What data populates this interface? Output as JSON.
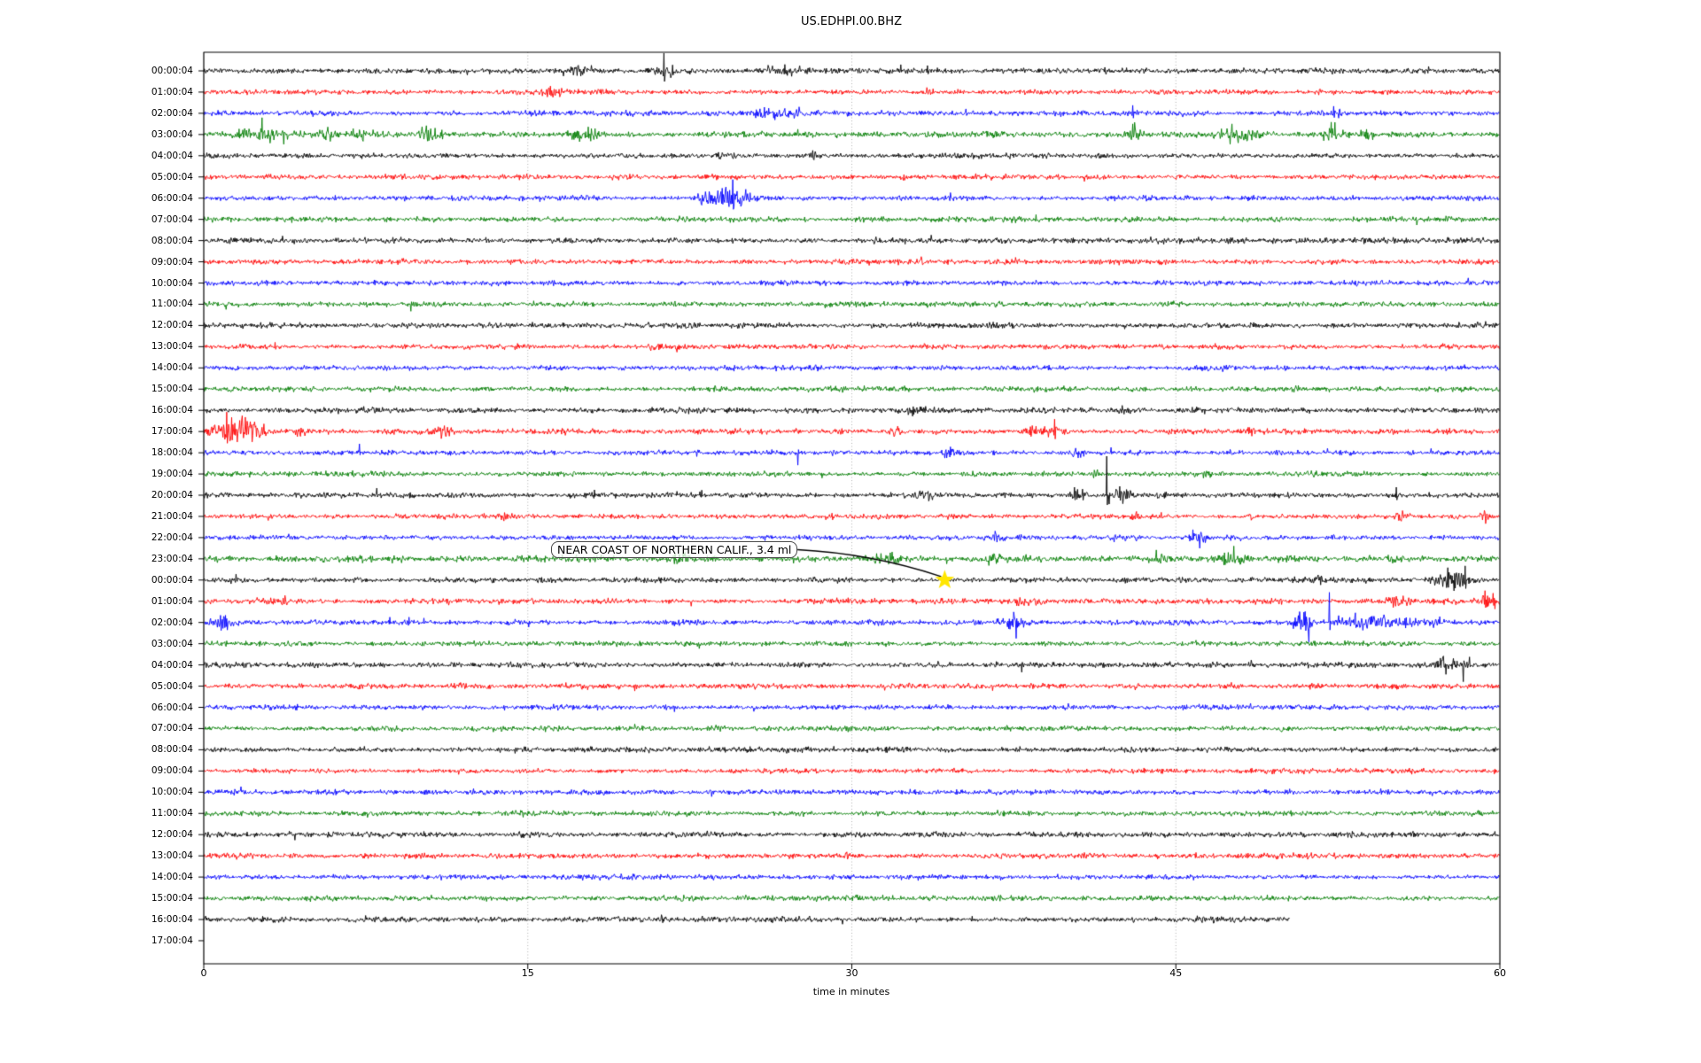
{
  "title": "US.EDHPI.00.BHZ",
  "axes": {
    "xlabel": "time in minutes",
    "x_ticks": [
      "0",
      "15",
      "30",
      "45",
      "60"
    ],
    "x_tick_minutes": [
      0,
      15,
      30,
      45,
      60
    ],
    "x_range_minutes": [
      0,
      60
    ],
    "grid_minutes": [
      15,
      30,
      45
    ],
    "grid_color": "#9a9a9a",
    "frame_color": "#000000"
  },
  "annotation": {
    "text": "NEAR COAST OF NORTHERN CALIF., 3.4 ml",
    "target_row": 24,
    "target_minute": 34.3,
    "marker": "star",
    "marker_color": "#ffe600"
  },
  "chart_data": {
    "type": "line",
    "subtype": "helicorder-dayplot",
    "title": "US.EDHPI.00.BHZ",
    "minutes_per_line": 60,
    "legend": "none",
    "grid": "vertical-dotted",
    "trace_colors": {
      "k": "#000000",
      "r": "#ff0000",
      "b": "#0000ff",
      "g": "#007d00"
    },
    "rows": [
      {
        "t": "00:00:04",
        "c": "k",
        "n": 3.4,
        "ev": [
          {
            "y": "b",
            "m": 17.2,
            "w": 1.2,
            "a": 5
          },
          {
            "y": "s",
            "m": 21.3,
            "a": 20,
            "d": "x"
          },
          {
            "y": "b",
            "m": 21.5,
            "w": 0.6,
            "a": 6
          },
          {
            "y": "b",
            "m": 27.0,
            "w": 1.5,
            "a": 4
          },
          {
            "y": "s",
            "m": 33.5,
            "a": 6,
            "d": "x"
          }
        ]
      },
      {
        "t": "01:00:04",
        "c": "r",
        "n": 3.0,
        "ev": [
          {
            "y": "b",
            "m": 16.1,
            "w": 0.9,
            "a": 6
          }
        ]
      },
      {
        "t": "02:00:04",
        "c": "b",
        "n": 3.0,
        "ev": [
          {
            "y": "b",
            "m": 26.3,
            "w": 2.0,
            "a": 7
          },
          {
            "y": "s",
            "m": 43.0,
            "a": 9,
            "d": "x"
          },
          {
            "y": "s",
            "m": 52.3,
            "a": 8,
            "d": "x"
          },
          {
            "y": "b",
            "m": 52.4,
            "w": 0.6,
            "a": 4
          }
        ]
      },
      {
        "t": "03:00:04",
        "c": "g",
        "n": 3.4,
        "ev": [
          {
            "y": "b",
            "m": 2.6,
            "w": 2.2,
            "a": 8
          },
          {
            "y": "s",
            "m": 2.7,
            "a": 19,
            "d": "u"
          },
          {
            "y": "s",
            "m": 3.7,
            "a": 11,
            "d": "d"
          },
          {
            "y": "b",
            "m": 5.8,
            "w": 0.8,
            "a": 5
          },
          {
            "y": "b",
            "m": 7.2,
            "w": 0.7,
            "a": 6
          },
          {
            "y": "b",
            "m": 10.5,
            "w": 1.1,
            "a": 7
          },
          {
            "y": "s",
            "m": 10.3,
            "a": 10,
            "d": "u"
          },
          {
            "y": "b",
            "m": 17.7,
            "w": 1.3,
            "a": 6
          },
          {
            "y": "s",
            "m": 27.5,
            "a": 6,
            "d": "u"
          },
          {
            "y": "b",
            "m": 36.6,
            "w": 0.5,
            "a": 5
          },
          {
            "y": "s",
            "m": 43.0,
            "a": 12,
            "d": "u"
          },
          {
            "y": "b",
            "m": 43.1,
            "w": 0.8,
            "a": 5
          },
          {
            "y": "b",
            "m": 47.9,
            "w": 1.8,
            "a": 8
          },
          {
            "y": "s",
            "m": 47.6,
            "a": 12,
            "d": "u"
          },
          {
            "y": "b",
            "m": 52.3,
            "w": 0.9,
            "a": 10
          },
          {
            "y": "s",
            "m": 52.2,
            "a": 14,
            "d": "u"
          },
          {
            "y": "b",
            "m": 53.8,
            "w": 0.7,
            "a": 6
          }
        ]
      },
      {
        "t": "04:00:04",
        "c": "k",
        "n": 3.2,
        "ev": [
          {
            "y": "s",
            "m": 28.2,
            "a": 6,
            "d": "x"
          },
          {
            "y": "b",
            "m": 28.2,
            "w": 0.4,
            "a": 4
          }
        ]
      },
      {
        "t": "05:00:04",
        "c": "r",
        "n": 3.0,
        "ev": []
      },
      {
        "t": "06:00:04",
        "c": "b",
        "n": 3.0,
        "ev": [
          {
            "y": "b",
            "m": 23.2,
            "w": 0.7,
            "a": 6
          },
          {
            "y": "b",
            "m": 24.4,
            "w": 1.6,
            "a": 12
          },
          {
            "y": "s",
            "m": 24.5,
            "a": 21,
            "d": "x"
          },
          {
            "y": "s",
            "m": 25.1,
            "a": 10,
            "d": "u"
          }
        ]
      },
      {
        "t": "07:00:04",
        "c": "g",
        "n": 3.0,
        "ev": []
      },
      {
        "t": "08:00:04",
        "c": "k",
        "n": 3.2,
        "ev": []
      },
      {
        "t": "09:00:04",
        "c": "r",
        "n": 3.0,
        "ev": []
      },
      {
        "t": "10:00:04",
        "c": "b",
        "n": 2.9,
        "ev": []
      },
      {
        "t": "11:00:04",
        "c": "g",
        "n": 3.1,
        "ev": []
      },
      {
        "t": "12:00:04",
        "c": "k",
        "n": 3.2,
        "ev": []
      },
      {
        "t": "13:00:04",
        "c": "r",
        "n": 3.0,
        "ev": [
          {
            "y": "s",
            "m": 3.3,
            "a": 5,
            "d": "x"
          }
        ]
      },
      {
        "t": "14:00:04",
        "c": "b",
        "n": 2.9,
        "ev": []
      },
      {
        "t": "15:00:04",
        "c": "g",
        "n": 3.1,
        "ev": []
      },
      {
        "t": "16:00:04",
        "c": "k",
        "n": 3.3,
        "ev": [
          {
            "y": "b",
            "m": 32.9,
            "w": 0.6,
            "a": 4
          },
          {
            "y": "b",
            "m": 42.5,
            "w": 0.5,
            "a": 4
          }
        ]
      },
      {
        "t": "17:00:04",
        "c": "r",
        "n": 3.0,
        "ev": [
          {
            "y": "b",
            "m": 1.6,
            "w": 2.4,
            "a": 14
          },
          {
            "y": "s",
            "m": 1.05,
            "a": 22,
            "d": "x"
          },
          {
            "y": "s",
            "m": 1.3,
            "a": 16,
            "d": "x"
          },
          {
            "y": "b",
            "m": 4.5,
            "w": 0.8,
            "a": 5
          },
          {
            "y": "b",
            "m": 11.1,
            "w": 0.8,
            "a": 6
          },
          {
            "y": "b",
            "m": 32.0,
            "w": 0.5,
            "a": 4
          },
          {
            "y": "b",
            "m": 38.6,
            "w": 0.9,
            "a": 7
          },
          {
            "y": "s",
            "m": 39.4,
            "a": 14,
            "d": "x"
          },
          {
            "y": "b",
            "m": 39.5,
            "w": 0.7,
            "a": 6
          },
          {
            "y": "b",
            "m": 48.4,
            "w": 0.6,
            "a": 5
          }
        ]
      },
      {
        "t": "18:00:04",
        "c": "b",
        "n": 2.9,
        "ev": [
          {
            "y": "s",
            "m": 7.2,
            "a": 10,
            "d": "u"
          },
          {
            "y": "s",
            "m": 27.5,
            "a": 14,
            "d": "d"
          },
          {
            "y": "b",
            "m": 34.5,
            "w": 0.8,
            "a": 4
          },
          {
            "y": "b",
            "m": 40.5,
            "w": 0.8,
            "a": 4
          },
          {
            "y": "s",
            "m": 42.0,
            "a": 6,
            "d": "u"
          },
          {
            "y": "b",
            "m": 56.0,
            "w": 0.5,
            "a": 4
          }
        ]
      },
      {
        "t": "19:00:04",
        "c": "g",
        "n": 3.0,
        "ev": [
          {
            "y": "b",
            "m": 41.3,
            "w": 0.4,
            "a": 4
          },
          {
            "y": "b",
            "m": 46.4,
            "w": 0.4,
            "a": 4
          }
        ]
      },
      {
        "t": "20:00:04",
        "c": "k",
        "n": 3.1,
        "ev": [
          {
            "y": "s",
            "m": 8.0,
            "a": 8,
            "d": "u"
          },
          {
            "y": "s",
            "m": 18.1,
            "a": 6,
            "d": "u"
          },
          {
            "y": "b",
            "m": 33.5,
            "w": 1.0,
            "a": 5
          },
          {
            "y": "b",
            "m": 40.4,
            "w": 0.8,
            "a": 7
          },
          {
            "y": "s",
            "m": 40.3,
            "a": 9,
            "d": "x"
          },
          {
            "y": "s",
            "m": 41.8,
            "a": 44,
            "d": "u"
          },
          {
            "y": "s",
            "m": 41.9,
            "a": 10,
            "d": "d"
          },
          {
            "y": "b",
            "m": 42.5,
            "w": 0.8,
            "a": 8
          },
          {
            "y": "s",
            "m": 42.4,
            "a": 10,
            "d": "x"
          },
          {
            "y": "b",
            "m": 44.3,
            "w": 0.4,
            "a": 4
          },
          {
            "y": "s",
            "m": 55.2,
            "a": 9,
            "d": "x"
          }
        ]
      },
      {
        "t": "21:00:04",
        "c": "r",
        "n": 2.9,
        "ev": [
          {
            "y": "b",
            "m": 13.9,
            "w": 0.4,
            "a": 4
          },
          {
            "y": "b",
            "m": 29.0,
            "w": 0.4,
            "a": 4
          },
          {
            "y": "b",
            "m": 43.1,
            "w": 0.4,
            "a": 5
          },
          {
            "y": "b",
            "m": 48.4,
            "w": 0.4,
            "a": 4
          },
          {
            "y": "b",
            "m": 55.4,
            "w": 0.6,
            "a": 5
          },
          {
            "y": "b",
            "m": 59.3,
            "w": 0.4,
            "a": 5
          }
        ]
      },
      {
        "t": "22:00:04",
        "c": "b",
        "n": 2.9,
        "ev": [
          {
            "y": "b",
            "m": 36.7,
            "w": 0.4,
            "a": 4
          },
          {
            "y": "b",
            "m": 46.0,
            "w": 1.0,
            "a": 8
          },
          {
            "y": "s",
            "m": 46.1,
            "a": 12,
            "d": "d"
          },
          {
            "y": "s",
            "m": 45.8,
            "a": 9,
            "d": "u"
          }
        ]
      },
      {
        "t": "23:00:04",
        "c": "g",
        "n": 3.8,
        "ev": [
          {
            "y": "b",
            "m": 22.2,
            "w": 0.6,
            "a": 5
          },
          {
            "y": "b",
            "m": 31.8,
            "w": 1.2,
            "a": 5
          },
          {
            "y": "b",
            "m": 36.5,
            "w": 0.5,
            "a": 7
          },
          {
            "y": "s",
            "m": 44.1,
            "a": 10,
            "d": "u"
          },
          {
            "y": "b",
            "m": 44.2,
            "w": 0.6,
            "a": 5
          },
          {
            "y": "b",
            "m": 47.5,
            "w": 1.6,
            "a": 5
          }
        ]
      },
      {
        "t": "00:00:04",
        "c": "k",
        "n": 3.2,
        "ev": [
          {
            "y": "b",
            "m": 34.3,
            "w": 0.3,
            "a": 3
          },
          {
            "y": "b",
            "m": 51.6,
            "w": 0.4,
            "a": 6
          },
          {
            "y": "b",
            "m": 57.9,
            "w": 1.6,
            "a": 10
          },
          {
            "y": "s",
            "m": 57.6,
            "a": 14,
            "d": "x"
          },
          {
            "y": "s",
            "m": 58.4,
            "a": 16,
            "d": "x"
          }
        ]
      },
      {
        "t": "01:00:04",
        "c": "r",
        "n": 3.2,
        "ev": [
          {
            "y": "b",
            "m": 3.7,
            "w": 0.3,
            "a": 5
          },
          {
            "y": "b",
            "m": 38.0,
            "w": 1.1,
            "a": 5
          },
          {
            "y": "b",
            "m": 55.3,
            "w": 0.9,
            "a": 6
          },
          {
            "y": "b",
            "m": 59.5,
            "w": 0.8,
            "a": 13
          },
          {
            "y": "s",
            "m": 59.3,
            "a": 12,
            "d": "x"
          }
        ]
      },
      {
        "t": "02:00:04",
        "c": "b",
        "n": 3.0,
        "ev": [
          {
            "y": "b",
            "m": 0.8,
            "w": 1.0,
            "a": 8
          },
          {
            "y": "s",
            "m": 8.6,
            "a": 6,
            "d": "u"
          },
          {
            "y": "s",
            "m": 9.5,
            "a": 6,
            "d": "u"
          },
          {
            "y": "s",
            "m": 10.2,
            "a": 5,
            "d": "u"
          },
          {
            "y": "s",
            "m": 21.8,
            "a": 4,
            "d": "d"
          },
          {
            "y": "b",
            "m": 37.4,
            "w": 1.0,
            "a": 9
          },
          {
            "y": "s",
            "m": 37.6,
            "a": 18,
            "d": "d"
          },
          {
            "y": "b",
            "m": 50.9,
            "w": 0.8,
            "a": 11
          },
          {
            "y": "s",
            "m": 51.15,
            "a": 22,
            "d": "d"
          },
          {
            "y": "s",
            "m": 52.1,
            "a": 34,
            "d": "u"
          },
          {
            "y": "b",
            "m": 52.6,
            "w": 0.4,
            "a": 8
          },
          {
            "y": "b",
            "m": 53.2,
            "w": 0.5,
            "a": 9
          },
          {
            "y": "b",
            "m": 53.9,
            "w": 0.8,
            "a": 10
          },
          {
            "y": "b",
            "m": 54.6,
            "w": 0.5,
            "a": 8
          },
          {
            "y": "b",
            "m": 55.8,
            "w": 1.5,
            "a": 5
          },
          {
            "y": "b",
            "m": 57.0,
            "w": 0.8,
            "a": 4
          }
        ]
      },
      {
        "t": "03:00:04",
        "c": "g",
        "n": 3.0,
        "ev": []
      },
      {
        "t": "04:00:04",
        "c": "k",
        "n": 3.2,
        "ev": [
          {
            "y": "b",
            "m": 48.4,
            "w": 0.3,
            "a": 4
          },
          {
            "y": "b",
            "m": 57.6,
            "w": 1.0,
            "a": 8
          },
          {
            "y": "s",
            "m": 57.4,
            "a": 10,
            "d": "u"
          },
          {
            "y": "s",
            "m": 58.3,
            "a": 19,
            "d": "d"
          },
          {
            "y": "s",
            "m": 58.6,
            "a": 9,
            "d": "u"
          }
        ]
      },
      {
        "t": "05:00:04",
        "c": "r",
        "n": 3.1,
        "ev": []
      },
      {
        "t": "06:00:04",
        "c": "b",
        "n": 2.9,
        "ev": [
          {
            "y": "s",
            "m": 21.8,
            "a": 5,
            "d": "d"
          }
        ]
      },
      {
        "t": "07:00:04",
        "c": "g",
        "n": 3.0,
        "ev": []
      },
      {
        "t": "08:00:04",
        "c": "k",
        "n": 3.2,
        "ev": []
      },
      {
        "t": "09:00:04",
        "c": "r",
        "n": 2.9,
        "ev": []
      },
      {
        "t": "10:00:04",
        "c": "b",
        "n": 2.9,
        "ev": []
      },
      {
        "t": "11:00:04",
        "c": "g",
        "n": 3.0,
        "ev": []
      },
      {
        "t": "12:00:04",
        "c": "k",
        "n": 3.2,
        "ev": []
      },
      {
        "t": "13:00:04",
        "c": "r",
        "n": 3.0,
        "ev": []
      },
      {
        "t": "14:00:04",
        "c": "b",
        "n": 2.9,
        "ev": []
      },
      {
        "t": "15:00:04",
        "c": "g",
        "n": 3.0,
        "ev": []
      },
      {
        "t": "16:00:04",
        "c": "k",
        "n": 3.3,
        "end": 50.3,
        "ev": []
      },
      {
        "t": "17:00:04",
        "c": "r",
        "n": 0,
        "end": 0,
        "ev": []
      }
    ]
  }
}
